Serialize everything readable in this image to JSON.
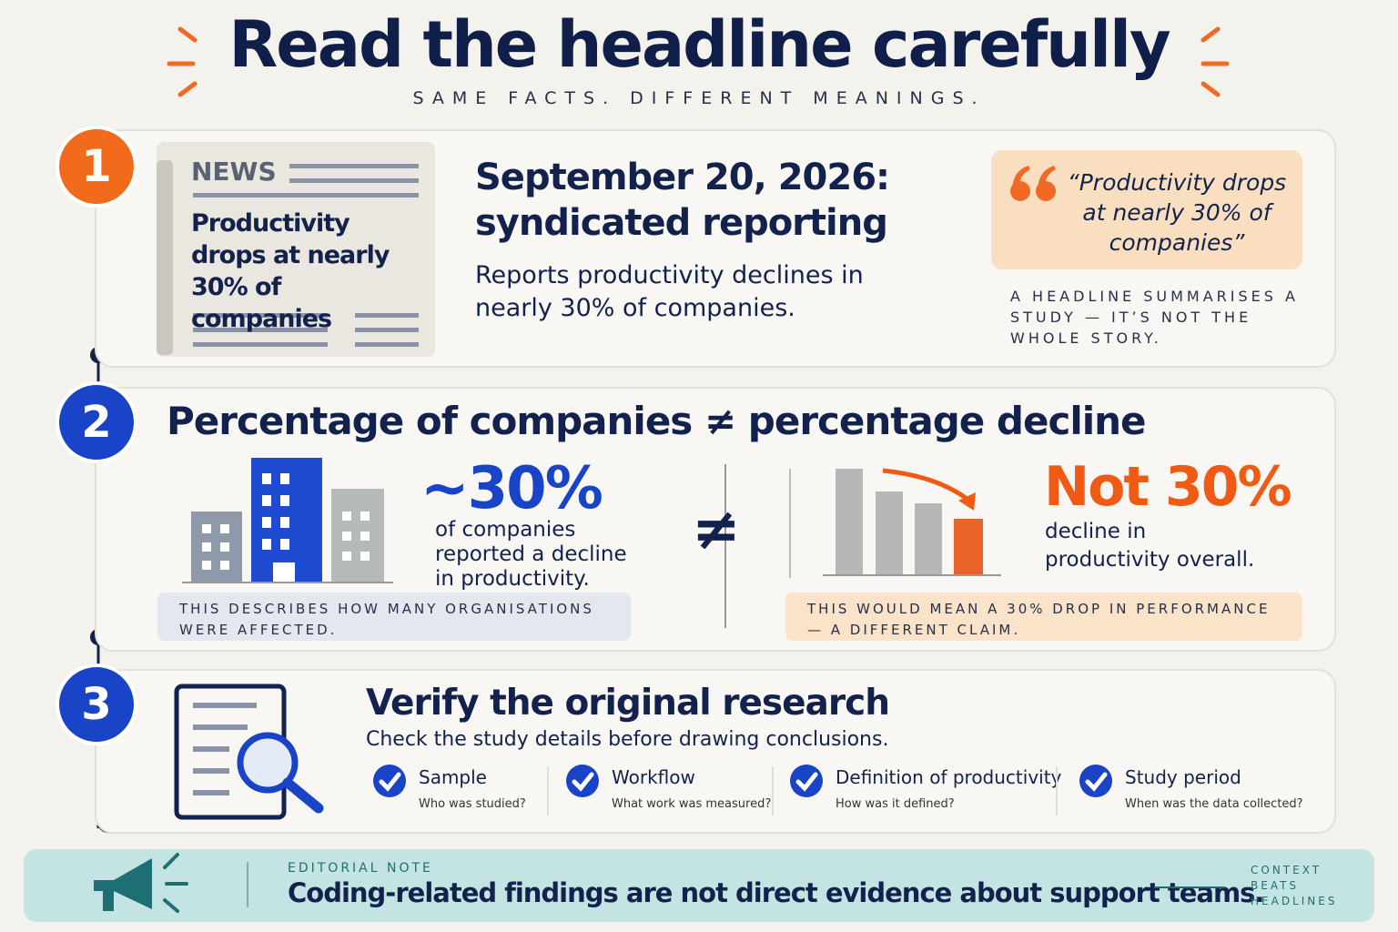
{
  "header": {
    "title": "Read the headline carefully",
    "subtitle": "SAME FACTS. DIFFERENT MEANINGS."
  },
  "steps": [
    {
      "number": "1",
      "news_label": "NEWS",
      "news_headline": "Productivity drops at nearly 30% of companies",
      "heading": "September 20, 2026: syndicated reporting",
      "description": "Reports productivity declines in nearly 30% of companies.",
      "quote": "“Productivity drops at nearly 30% of companies”",
      "note": "A HEADLINE SUMMARISES A STUDY — IT’S NOT THE WHOLE STORY."
    },
    {
      "number": "2",
      "heading_left": "Percentage of companies",
      "symbol": "≠",
      "heading_right": "percentage decline",
      "left": {
        "figure": "~30%",
        "text": "of companies reported a decline in productivity.",
        "note": "THIS DESCRIBES HOW MANY ORGANISATIONS WERE AFFECTED."
      },
      "right": {
        "figure": "Not 30%",
        "text": "decline in productivity overall.",
        "note": "THIS WOULD MEAN A 30% DROP IN PERFORMANCE — A DIFFERENT CLAIM."
      }
    },
    {
      "number": "3",
      "heading": "Verify the original research",
      "description": "Check the study details before drawing conclusions.",
      "checks": [
        {
          "label": "Sample",
          "question": "Who was studied?"
        },
        {
          "label": "Workflow",
          "question": "What work was measured?"
        },
        {
          "label": "Definition of productivity",
          "question": "How was it defined?"
        },
        {
          "label": "Study period",
          "question": "When was the data collected?"
        }
      ]
    }
  ],
  "footer": {
    "label": "EDITORIAL NOTE",
    "text": "Coding-related findings are not direct evidence about support teams.",
    "side": "CONTEXT BEATS HEADLINES"
  }
}
